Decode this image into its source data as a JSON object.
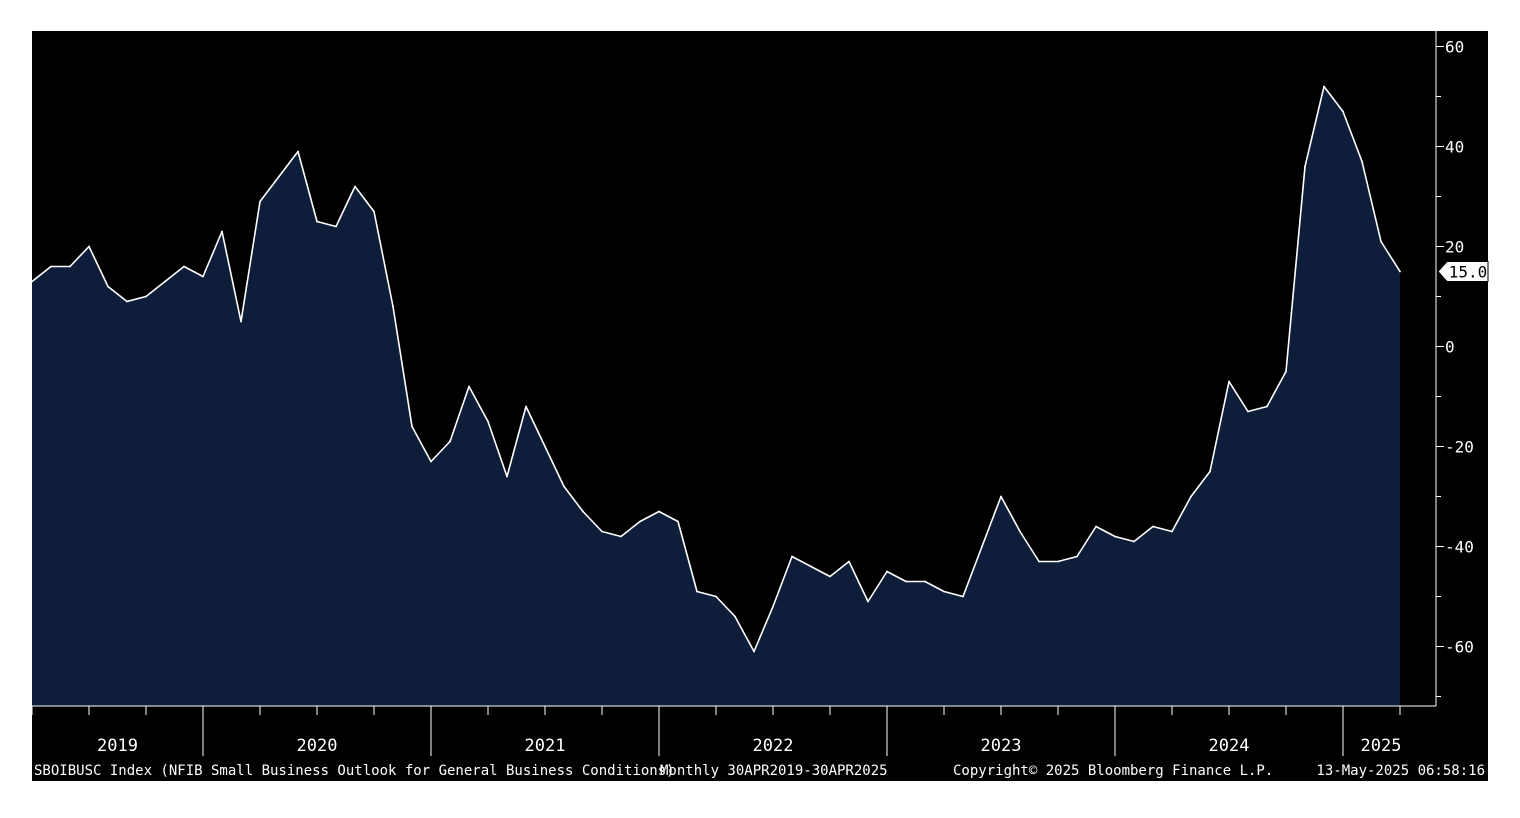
{
  "footer": {
    "ticker": "SBOIBUSC Index (NFIB Small Business Outlook for General Business Conditions)",
    "period": "Monthly 30APR2019-30APR2025",
    "copyright": "Copyright© 2025 Bloomberg Finance L.P.",
    "timestamp": "13-May-2025 06:58:16"
  },
  "colors": {
    "background": "#000000",
    "area_fill": "#0e1e3a",
    "line": "#ffffff",
    "axis": "#ffffff",
    "page": "#ffffff"
  },
  "chart_data": {
    "type": "area",
    "frequency": "monthly",
    "x_start": "2019-04",
    "x_end": "2025-04",
    "x_tick_labels": [
      "2019",
      "2020",
      "2021",
      "2022",
      "2023",
      "2024",
      "2025"
    ],
    "y_tick_labels": [
      60,
      40,
      20,
      0,
      -20,
      -40,
      -60
    ],
    "ylim": [
      -72,
      63
    ],
    "last_value_label": "15.0",
    "y_axis_side": "right",
    "grid": false,
    "series": [
      {
        "values": [
          13,
          16,
          16,
          20,
          12,
          9,
          10,
          13,
          16,
          14,
          23,
          5,
          29,
          34,
          39,
          25,
          24,
          32,
          27,
          8,
          -16,
          -23,
          -19,
          -8,
          -15,
          -26,
          -12,
          -20,
          -28,
          -33,
          -37,
          -38,
          -35,
          -33,
          -35,
          -49,
          -50,
          -54,
          -61,
          -52,
          -42,
          -44,
          -46,
          -43,
          -51,
          -45,
          -47,
          -47,
          -49,
          -50,
          -40,
          -30,
          -37,
          -43,
          -43,
          -42,
          -36,
          -38,
          -39,
          -36,
          -37,
          -30,
          -25,
          -7,
          -13,
          -12,
          -5,
          36,
          52,
          47,
          37,
          21,
          15
        ]
      }
    ]
  }
}
